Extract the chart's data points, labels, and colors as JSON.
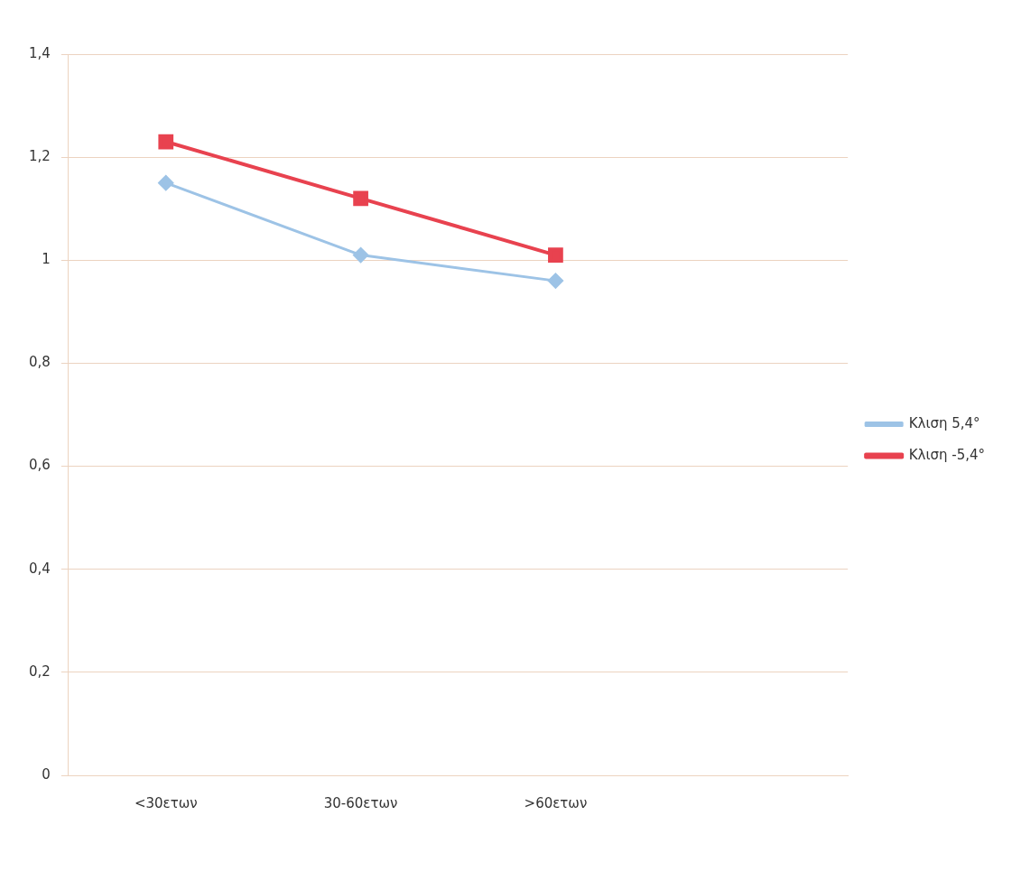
{
  "chart_data": {
    "type": "line",
    "categories": [
      "<30ετων",
      "30-60ετων",
      ">60ετων",
      null
    ],
    "series": [
      {
        "name": "Κλιση 5,4°",
        "color": "#9dc3e6",
        "values": [
          1.15,
          1.01,
          0.96,
          null
        ],
        "marker": "diamond"
      },
      {
        "name": "Κλιση -5,4°",
        "color": "#e8424f",
        "values": [
          1.23,
          1.12,
          1.01,
          null
        ],
        "marker": "square"
      }
    ],
    "ylim": [
      0,
      1.4
    ],
    "yticks": [
      0,
      {
        "value": 0.2,
        "label": "0,2"
      },
      {
        "value": 0.4,
        "label": "0,4"
      },
      {
        "value": 0.6,
        "label": "0,6"
      },
      {
        "value": 0.8,
        "label": "0,8"
      },
      1,
      {
        "value": 1.2,
        "label": "1,2"
      },
      {
        "value": 1.4,
        "label": "1,4"
      }
    ],
    "grid": "y",
    "legend": "right"
  }
}
